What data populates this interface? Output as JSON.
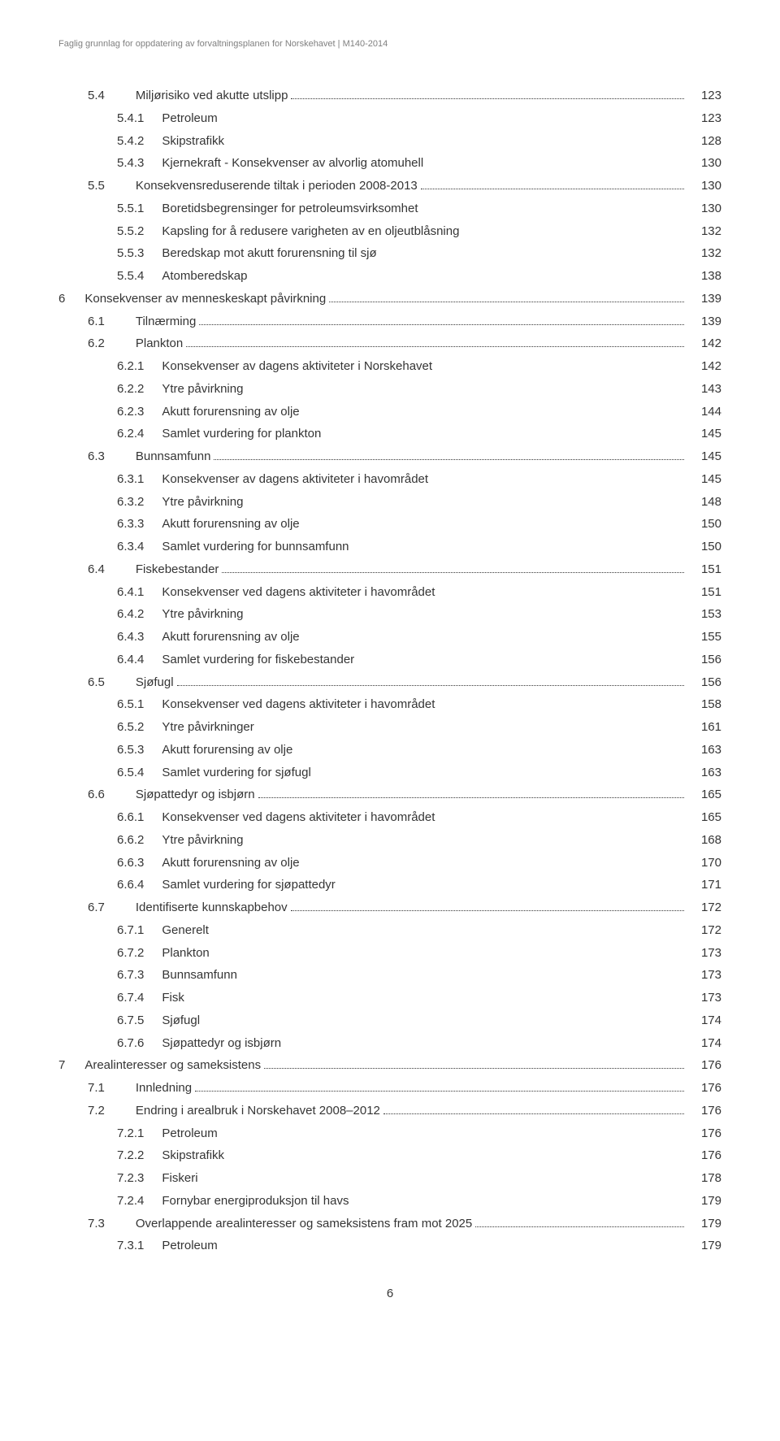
{
  "header": "Faglig grunnlag for oppdatering av forvaltningsplanen for Norskehavet | M140-2014",
  "footer": "6",
  "gap_lvl2": 38,
  "gap_lvl3": 22,
  "gap_lvl4": 22,
  "toc": [
    {
      "lvl": 2,
      "num": "5.4",
      "title": "Miljørisiko ved akutte utslipp",
      "page": "123",
      "dots": true
    },
    {
      "lvl": 3,
      "num": "5.4.1",
      "title": "Petroleum",
      "page": "123",
      "dots": false
    },
    {
      "lvl": 3,
      "num": "5.4.2",
      "title": "Skipstrafikk",
      "page": "128",
      "dots": false
    },
    {
      "lvl": 3,
      "num": "5.4.3",
      "title": "Kjernekraft - Konsekvenser av alvorlig atomuhell",
      "page": "130",
      "dots": false
    },
    {
      "lvl": 2,
      "num": "5.5",
      "title": "Konsekvensreduserende tiltak i perioden 2008-2013",
      "page": "130",
      "dots": true
    },
    {
      "lvl": 3,
      "num": "5.5.1",
      "title": "Boretidsbegrensinger for petroleumsvirksomhet",
      "page": "130",
      "dots": false
    },
    {
      "lvl": 3,
      "num": "5.5.2",
      "title": "Kapsling for å redusere varigheten av en oljeutblåsning",
      "page": "132",
      "dots": false
    },
    {
      "lvl": 3,
      "num": "5.5.3",
      "title": "Beredskap mot akutt forurensning til sjø",
      "page": "132",
      "dots": false
    },
    {
      "lvl": 3,
      "num": "5.5.4",
      "title": "Atomberedskap",
      "page": "138",
      "dots": false
    },
    {
      "lvl": 1,
      "num": "6",
      "title": "Konsekvenser av menneskeskapt påvirkning",
      "page": "139",
      "dots": true,
      "gap": 24
    },
    {
      "lvl": 2,
      "num": "6.1",
      "title": "Tilnærming",
      "page": "139",
      "dots": true
    },
    {
      "lvl": 2,
      "num": "6.2",
      "title": "Plankton",
      "page": "142",
      "dots": true
    },
    {
      "lvl": 3,
      "num": "6.2.1",
      "title": "Konsekvenser av dagens aktiviteter i Norskehavet",
      "page": "142",
      "dots": false
    },
    {
      "lvl": 3,
      "num": "6.2.2",
      "title": "Ytre påvirkning",
      "page": "143",
      "dots": false
    },
    {
      "lvl": 3,
      "num": "6.2.3",
      "title": "Akutt forurensning av olje",
      "page": "144",
      "dots": false
    },
    {
      "lvl": 3,
      "num": "6.2.4",
      "title": "Samlet vurdering for plankton",
      "page": "145",
      "dots": false
    },
    {
      "lvl": 2,
      "num": "6.3",
      "title": "Bunnsamfunn",
      "page": "145",
      "dots": true
    },
    {
      "lvl": 3,
      "num": "6.3.1",
      "title": "Konsekvenser av dagens aktiviteter i havområdet",
      "page": "145",
      "dots": false
    },
    {
      "lvl": 3,
      "num": "6.3.2",
      "title": "Ytre påvirkning",
      "page": "148",
      "dots": false
    },
    {
      "lvl": 3,
      "num": "6.3.3",
      "title": "Akutt forurensning av olje",
      "page": "150",
      "dots": false
    },
    {
      "lvl": 3,
      "num": "6.3.4",
      "title": "Samlet vurdering for bunnsamfunn",
      "page": "150",
      "dots": false
    },
    {
      "lvl": 2,
      "num": "6.4",
      "title": "Fiskebestander",
      "page": "151",
      "dots": true
    },
    {
      "lvl": 3,
      "num": "6.4.1",
      "title": "Konsekvenser ved dagens aktiviteter i havområdet",
      "page": "151",
      "dots": false
    },
    {
      "lvl": 3,
      "num": "6.4.2",
      "title": "Ytre påvirkning",
      "page": "153",
      "dots": false
    },
    {
      "lvl": 3,
      "num": "6.4.3",
      "title": "Akutt forurensning av olje",
      "page": "155",
      "dots": false
    },
    {
      "lvl": 3,
      "num": "6.4.4",
      "title": "Samlet vurdering for fiskebestander",
      "page": "156",
      "dots": false
    },
    {
      "lvl": 2,
      "num": "6.5",
      "title": "Sjøfugl",
      "page": "156",
      "dots": true
    },
    {
      "lvl": 3,
      "num": "6.5.1",
      "title": "Konsekvenser ved dagens aktiviteter i havområdet",
      "page": "158",
      "dots": false
    },
    {
      "lvl": 3,
      "num": "6.5.2",
      "title": "Ytre påvirkninger",
      "page": "161",
      "dots": false
    },
    {
      "lvl": 3,
      "num": "6.5.3",
      "title": "Akutt forurensing av olje",
      "page": "163",
      "dots": false
    },
    {
      "lvl": 3,
      "num": "6.5.4",
      "title": "Samlet vurdering for sjøfugl",
      "page": "163",
      "dots": false
    },
    {
      "lvl": 2,
      "num": "6.6",
      "title": "Sjøpattedyr og isbjørn",
      "page": "165",
      "dots": true
    },
    {
      "lvl": 3,
      "num": "6.6.1",
      "title": "Konsekvenser ved dagens aktiviteter i havområdet",
      "page": "165",
      "dots": false
    },
    {
      "lvl": 3,
      "num": "6.6.2",
      "title": "Ytre påvirkning",
      "page": "168",
      "dots": false
    },
    {
      "lvl": 3,
      "num": "6.6.3",
      "title": "Akutt forurensning av olje",
      "page": "170",
      "dots": false
    },
    {
      "lvl": 3,
      "num": "6.6.4",
      "title": "Samlet vurdering for sjøpattedyr",
      "page": "171",
      "dots": false
    },
    {
      "lvl": 2,
      "num": "6.7",
      "title": "Identifiserte kunnskapbehov",
      "page": "172",
      "dots": true
    },
    {
      "lvl": 3,
      "num": "6.7.1",
      "title": "Generelt",
      "page": "172",
      "dots": false
    },
    {
      "lvl": 3,
      "num": "6.7.2",
      "title": "Plankton",
      "page": "173",
      "dots": false
    },
    {
      "lvl": 3,
      "num": "6.7.3",
      "title": "Bunnsamfunn",
      "page": "173",
      "dots": false
    },
    {
      "lvl": 3,
      "num": "6.7.4",
      "title": "Fisk",
      "page": "173",
      "dots": false
    },
    {
      "lvl": 3,
      "num": "6.7.5",
      "title": "Sjøfugl",
      "page": "174",
      "dots": false
    },
    {
      "lvl": 3,
      "num": "6.7.6",
      "title": "Sjøpattedyr og isbjørn",
      "page": "174",
      "dots": false
    },
    {
      "lvl": 1,
      "num": "7",
      "title": "Arealinteresser og sameksistens",
      "page": "176",
      "dots": true,
      "gap": 24
    },
    {
      "lvl": 2,
      "num": "7.1",
      "title": "Innledning",
      "page": "176",
      "dots": true
    },
    {
      "lvl": 2,
      "num": "7.2",
      "title": "Endring i arealbruk i Norskehavet 2008–2012",
      "page": "176",
      "dots": true
    },
    {
      "lvl": 3,
      "num": "7.2.1",
      "title": "Petroleum",
      "page": "176",
      "dots": false
    },
    {
      "lvl": 3,
      "num": "7.2.2",
      "title": "Skipstrafikk",
      "page": "176",
      "dots": false
    },
    {
      "lvl": 3,
      "num": "7.2.3",
      "title": "Fiskeri",
      "page": "178",
      "dots": false
    },
    {
      "lvl": 3,
      "num": "7.2.4",
      "title": "Fornybar energiproduksjon til havs",
      "page": "179",
      "dots": false
    },
    {
      "lvl": 2,
      "num": "7.3",
      "title": "Overlappende arealinteresser og sameksistens fram mot 2025",
      "page": "179",
      "dots": true
    },
    {
      "lvl": 3,
      "num": "7.3.1",
      "title": "Petroleum",
      "page": "179",
      "dots": false
    }
  ]
}
